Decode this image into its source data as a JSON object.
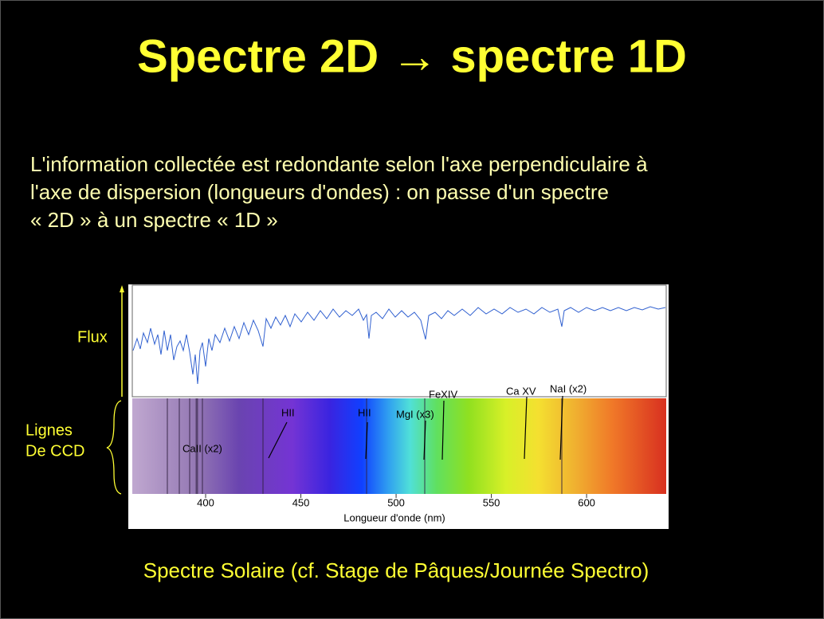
{
  "title": "Spectre 2D → spectre 1D",
  "text": [
    "L'information collectée est redondante selon l'axe perpendiculaire à",
    "l'axe de dispersion (longueurs d'ondes) : on passe d'un spectre",
    "« 2D » à un spectre « 1D »"
  ],
  "figure": {
    "y_label": "Flux",
    "ccd_label": [
      "Lignes",
      "De CCD"
    ],
    "line_labels": [
      "CaII (x2)",
      "HII",
      "HII",
      "MgI (x3)",
      "FeXIV",
      "Ca XV",
      "NaI (x2)"
    ],
    "xlim": [
      361.5,
      641.8
    ],
    "xticks": [
      400,
      450,
      500,
      550,
      600
    ],
    "x_label": "Longueur d'onde (nm)"
  },
  "caption": "Spectre Solaire (cf. Stage de Pâques/Journée Spectro)"
}
